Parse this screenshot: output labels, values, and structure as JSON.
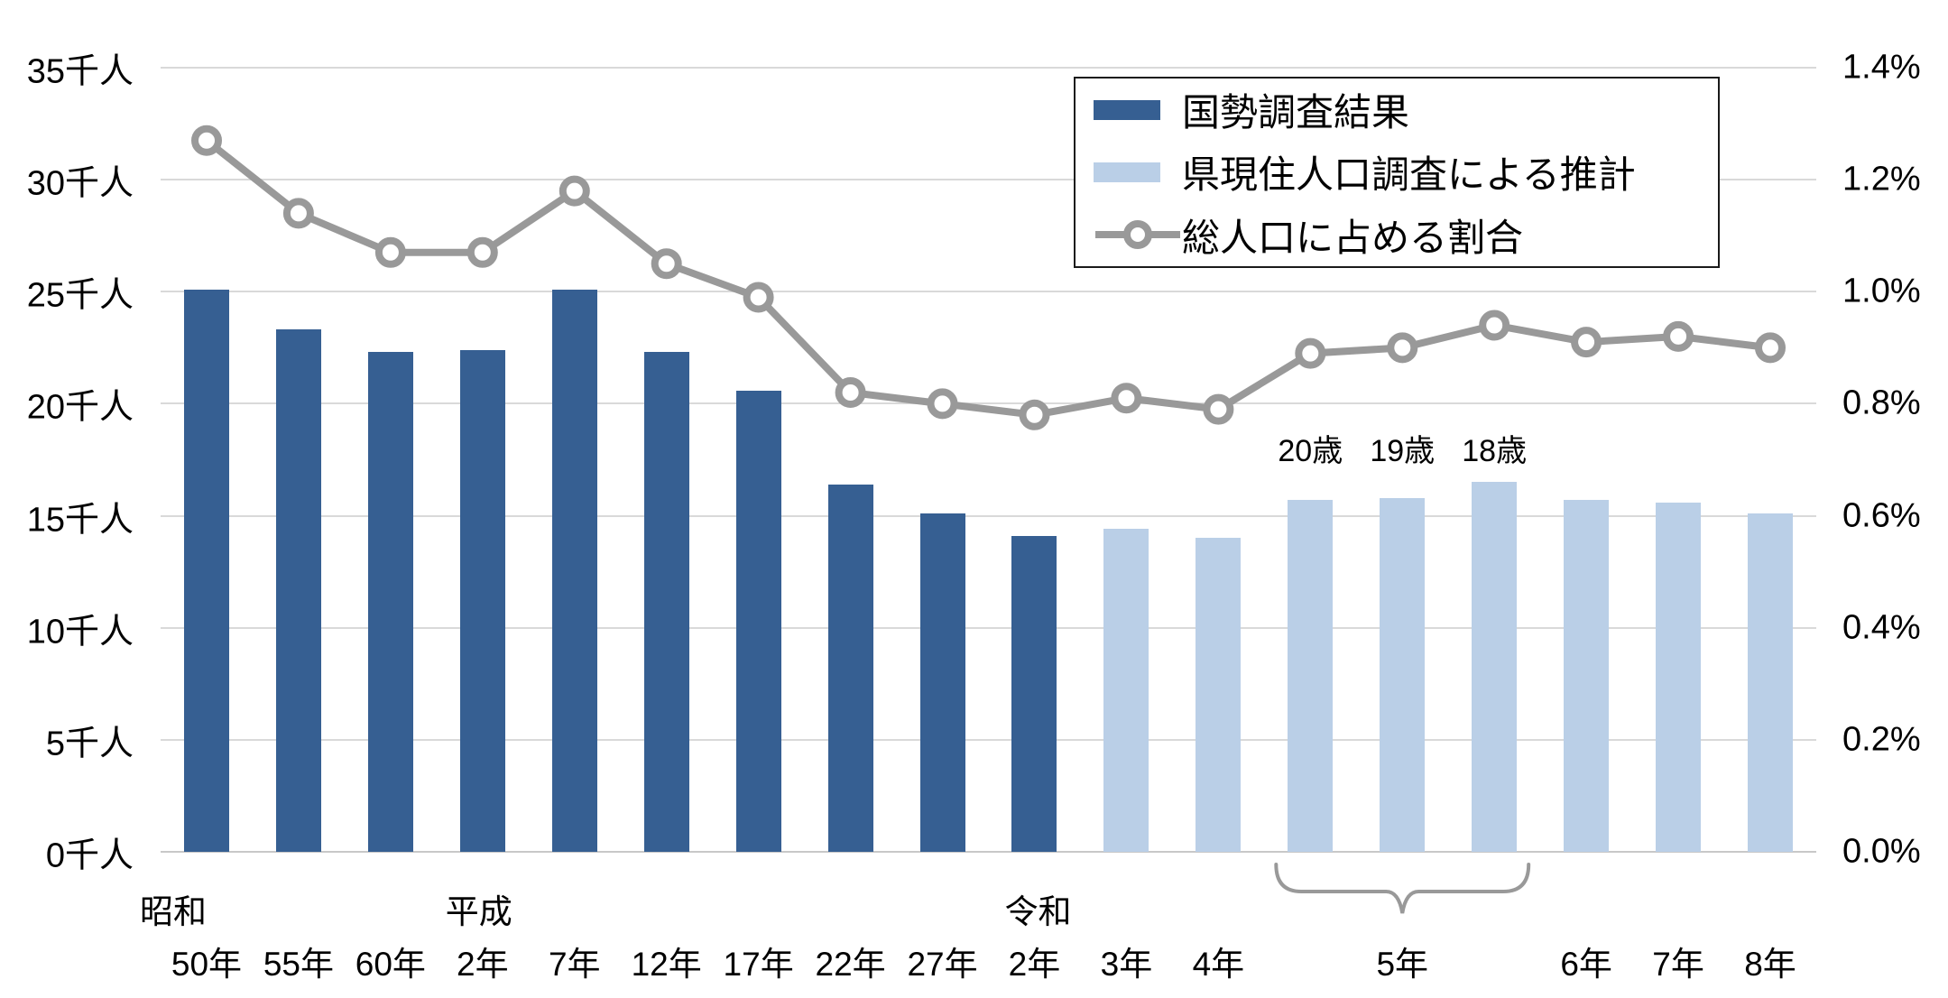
{
  "chart_data": {
    "type": "bar+line",
    "title": "",
    "categories": [
      "昭和50年",
      "55年",
      "60年",
      "平成2年",
      "7年",
      "12年",
      "17年",
      "22年",
      "27年",
      "令和2年",
      "3年",
      "4年",
      "5年(20歳)",
      "5年(19歳)",
      "5年(18歳)",
      "6年",
      "7年",
      "8年"
    ],
    "x_tick_labels": [
      "50年",
      "55年",
      "60年",
      "2年",
      "7年",
      "12年",
      "17年",
      "22年",
      "27年",
      "2年",
      "3年",
      "4年",
      null,
      null,
      null,
      "6年",
      "7年",
      "8年"
    ],
    "era_labels": [
      {
        "text": "昭和",
        "column": 0
      },
      {
        "text": "平成",
        "column": 3
      },
      {
        "text": "令和",
        "column": 9
      }
    ],
    "series": [
      {
        "name": "国勢調査結果",
        "type": "bar",
        "color": "#365F92",
        "axis": "left",
        "values": [
          25.1,
          23.3,
          22.3,
          22.4,
          25.1,
          22.3,
          20.6,
          16.4,
          15.1,
          14.1,
          null,
          null,
          null,
          null,
          null,
          null,
          null,
          null
        ]
      },
      {
        "name": "県現住人口調査による推計",
        "type": "bar",
        "color": "#BACFE7",
        "axis": "left",
        "values": [
          null,
          null,
          null,
          null,
          null,
          null,
          null,
          null,
          null,
          null,
          14.4,
          14.0,
          15.7,
          15.8,
          16.5,
          15.7,
          15.6,
          15.1
        ]
      },
      {
        "name": "総人口に占める割合",
        "type": "line",
        "color": "#999999",
        "marker": "open-circle",
        "axis": "right",
        "values": [
          1.27,
          1.14,
          1.07,
          1.07,
          1.18,
          1.05,
          0.99,
          0.82,
          0.8,
          0.78,
          0.81,
          0.79,
          0.89,
          0.9,
          0.94,
          0.91,
          0.92,
          0.9
        ]
      }
    ],
    "bar_annotations": [
      {
        "column": 12,
        "text": "20歳"
      },
      {
        "column": 13,
        "text": "19歳"
      },
      {
        "column": 14,
        "text": "18歳"
      }
    ],
    "group_bracket": {
      "from_column": 12,
      "to_column": 14,
      "label": "5年"
    },
    "left_axis": {
      "unit": "千人",
      "min": 0,
      "max": 35,
      "step": 5,
      "tick_labels": [
        "0千人",
        "5千人",
        "10千人",
        "15千人",
        "20千人",
        "25千人",
        "30千人",
        "35千人"
      ]
    },
    "right_axis": {
      "unit": "%",
      "min": 0,
      "max": 1.4,
      "step": 0.2,
      "tick_labels": [
        "0.0%",
        "0.2%",
        "0.4%",
        "0.6%",
        "0.8%",
        "1.0%",
        "1.2%",
        "1.4%"
      ]
    },
    "grid": "horizontal",
    "grid_color": "#D9D9D9",
    "legend_position": "top-right"
  }
}
